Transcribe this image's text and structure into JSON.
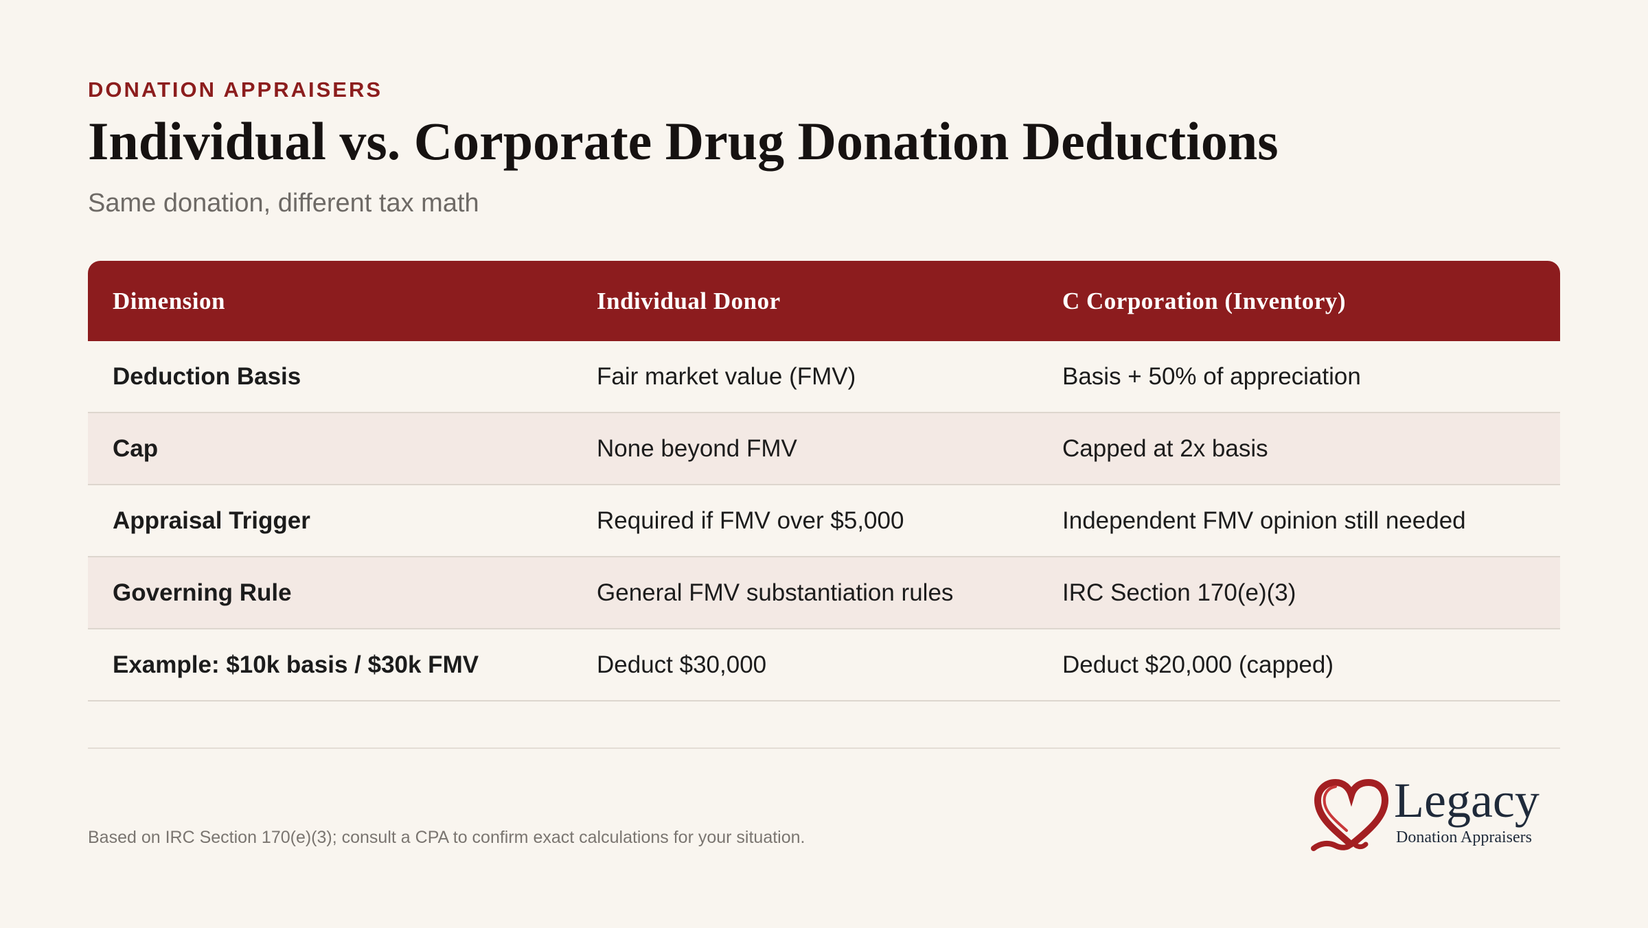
{
  "header": {
    "eyebrow": "DONATION APPRAISERS",
    "title": "Individual vs. Corporate Drug Donation Deductions",
    "subtitle": "Same donation, different tax math"
  },
  "table": {
    "columns": [
      "Dimension",
      "Individual Donor",
      "C Corporation (Inventory)"
    ],
    "rows": [
      [
        "Deduction Basis",
        "Fair market value (FMV)",
        "Basis + 50% of appreciation"
      ],
      [
        "Cap",
        "None beyond FMV",
        "Capped at 2x basis"
      ],
      [
        "Appraisal Trigger",
        "Required if FMV over $5,000",
        "Independent FMV opinion still needed"
      ],
      [
        "Governing Rule",
        "General FMV substantiation rules",
        "IRC Section 170(e)(3)"
      ],
      [
        "Example: $10k basis / $30k FMV",
        "Deduct $30,000",
        "Deduct $20,000 (capped)"
      ]
    ]
  },
  "footer": {
    "note": "Based on IRC Section 170(e)(3); consult a CPA to confirm exact calculations for your situation.",
    "logo_word": "Legacy",
    "logo_sub": "Donation Appraisers"
  },
  "colors": {
    "accent": "#8c1c1e",
    "background": "#f9f5ef",
    "alt_row": "#f3e9e4"
  },
  "icons": {
    "logo": "heart-ribbon-icon"
  }
}
